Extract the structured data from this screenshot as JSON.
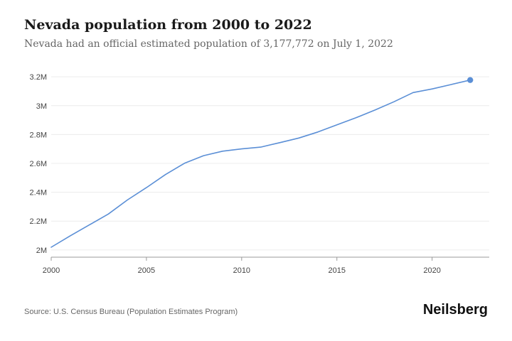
{
  "title": "Nevada population from 2000 to 2022",
  "subtitle": "Nevada had an official estimated population of 3,177,772 on July 1, 2022",
  "source": "Source: U.S. Census Bureau (Population Estimates Program)",
  "brand": "Neilsberg",
  "line_color": "#5b8fd6",
  "chart_data": {
    "type": "line",
    "x": [
      2000,
      2001,
      2002,
      2003,
      2004,
      2005,
      2006,
      2007,
      2008,
      2009,
      2010,
      2011,
      2012,
      2013,
      2014,
      2015,
      2016,
      2017,
      2018,
      2019,
      2020,
      2021,
      2022
    ],
    "series": [
      {
        "values": [
          2018741,
          2098399,
          2173791,
          2248850,
          2346222,
          2432143,
          2522658,
          2601072,
          2653630,
          2684665,
          2700691,
          2712730,
          2743996,
          2775970,
          2817628,
          2866939,
          2915974,
          2969905,
          3027341,
          3090771,
          3115840,
          3146402,
          3177772
        ]
      }
    ],
    "xticks": [
      2000,
      2005,
      2010,
      2015,
      2020
    ],
    "yticks": [
      2000000,
      2200000,
      2400000,
      2600000,
      2800000,
      3000000,
      3200000
    ],
    "ytick_labels": [
      "2M",
      "2.2M",
      "2.4M",
      "2.6M",
      "2.8M",
      "3M",
      "3.2M"
    ],
    "xlim": [
      2000,
      2023
    ],
    "ylim": [
      1950000,
      3250000
    ],
    "grid": "horizontal",
    "highlight_last_point": true
  }
}
